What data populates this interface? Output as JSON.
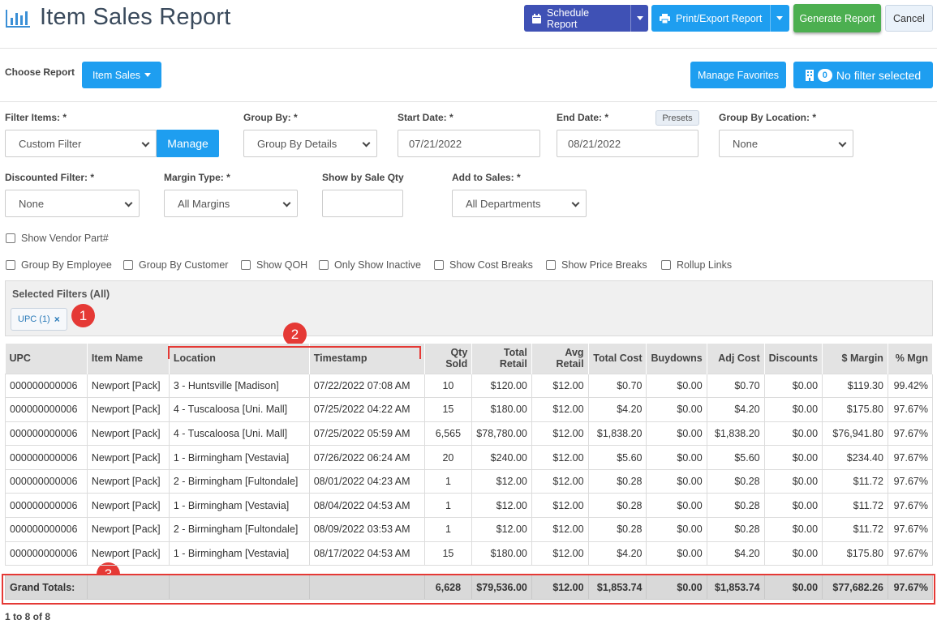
{
  "header": {
    "title": "Item Sales Report",
    "schedule_label": "Schedule Report",
    "print_label": "Print/Export Report",
    "generate_label": "Generate Report",
    "cancel_label": "Cancel"
  },
  "report_bar": {
    "choose_label": "Choose Report",
    "report_value": "Item Sales",
    "favorites_label": "Manage Favorites",
    "filter_count": "0",
    "filter_status": "No filter selected"
  },
  "filters": {
    "filter_items_label": "Filter Items: *",
    "filter_items_value": "Custom Filter",
    "manage_label": "Manage",
    "group_by_label": "Group By: *",
    "group_by_value": "Group By Details",
    "start_date_label": "Start Date: *",
    "start_date_value": "07/21/2022",
    "end_date_label": "End Date: *",
    "end_date_value": "08/21/2022",
    "presets_label": "Presets",
    "group_location_label": "Group By Location: *",
    "group_location_value": "None",
    "discounted_label": "Discounted Filter: *",
    "discounted_value": "None",
    "margin_type_label": "Margin Type: *",
    "margin_type_value": "All Margins",
    "sale_qty_label": "Show by Sale Qty",
    "sale_qty_value": "",
    "add_to_sales_label": "Add to Sales: *",
    "add_to_sales_value": "All Departments"
  },
  "checkboxes": {
    "vendor_part": "Show Vendor Part#",
    "options": [
      "Group By Employee",
      "Group By Customer",
      "Show QOH",
      "Only Show Inactive",
      "Show Cost Breaks",
      "Show Price Breaks",
      "Rollup Links"
    ]
  },
  "selected_filters": {
    "title": "Selected Filters (All)",
    "chip": "UPC (1)",
    "chip_remove": "×"
  },
  "markers": [
    "1",
    "2",
    "3"
  ],
  "table": {
    "headers": [
      "UPC",
      "Item Name",
      "Location",
      "Timestamp",
      "Qty Sold",
      "Total Retail",
      "Avg Retail",
      "Total Cost",
      "Buydowns",
      "Adj Cost",
      "Discounts",
      "$ Margin",
      "% Mgn"
    ],
    "rows": [
      [
        "000000000006",
        "Newport [Pack]",
        "3 - Huntsville [Madison]",
        "07/22/2022 07:08 AM",
        "10",
        "$120.00",
        "$12.00",
        "$0.70",
        "$0.00",
        "$0.70",
        "$0.00",
        "$119.30",
        "99.42%"
      ],
      [
        "000000000006",
        "Newport [Pack]",
        "4 - Tuscaloosa [Uni. Mall]",
        "07/25/2022 04:22 AM",
        "15",
        "$180.00",
        "$12.00",
        "$4.20",
        "$0.00",
        "$4.20",
        "$0.00",
        "$175.80",
        "97.67%"
      ],
      [
        "000000000006",
        "Newport [Pack]",
        "4 - Tuscaloosa [Uni. Mall]",
        "07/25/2022 05:59 AM",
        "6,565",
        "$78,780.00",
        "$12.00",
        "$1,838.20",
        "$0.00",
        "$1,838.20",
        "$0.00",
        "$76,941.80",
        "97.67%"
      ],
      [
        "000000000006",
        "Newport [Pack]",
        "1 - Birmingham [Vestavia]",
        "07/26/2022 06:24 AM",
        "20",
        "$240.00",
        "$12.00",
        "$5.60",
        "$0.00",
        "$5.60",
        "$0.00",
        "$234.40",
        "97.67%"
      ],
      [
        "000000000006",
        "Newport [Pack]",
        "2 - Birmingham [Fultondale]",
        "08/01/2022 04:23 AM",
        "1",
        "$12.00",
        "$12.00",
        "$0.28",
        "$0.00",
        "$0.28",
        "$0.00",
        "$11.72",
        "97.67%"
      ],
      [
        "000000000006",
        "Newport [Pack]",
        "1 - Birmingham [Vestavia]",
        "08/04/2022 04:53 AM",
        "1",
        "$12.00",
        "$12.00",
        "$0.28",
        "$0.00",
        "$0.28",
        "$0.00",
        "$11.72",
        "97.67%"
      ],
      [
        "000000000006",
        "Newport [Pack]",
        "2 - Birmingham [Fultondale]",
        "08/09/2022 03:53 AM",
        "1",
        "$12.00",
        "$12.00",
        "$0.28",
        "$0.00",
        "$0.28",
        "$0.00",
        "$11.72",
        "97.67%"
      ],
      [
        "000000000006",
        "Newport [Pack]",
        "1 - Birmingham [Vestavia]",
        "08/17/2022 04:53 AM",
        "15",
        "$180.00",
        "$12.00",
        "$4.20",
        "$0.00",
        "$4.20",
        "$0.00",
        "$175.80",
        "97.67%"
      ]
    ],
    "totals": [
      "Grand Totals:",
      "",
      "",
      "",
      "6,628",
      "$79,536.00",
      "$12.00",
      "$1,853.74",
      "$0.00",
      "$1,853.74",
      "$0.00",
      "$77,682.26",
      "97.67%"
    ]
  },
  "pager": "1 to 8 of 8",
  "colors": {
    "schedule": "#3f51b5",
    "primary": "#1e9ef0",
    "generate": "#4caf50",
    "marker": "#e53935"
  }
}
